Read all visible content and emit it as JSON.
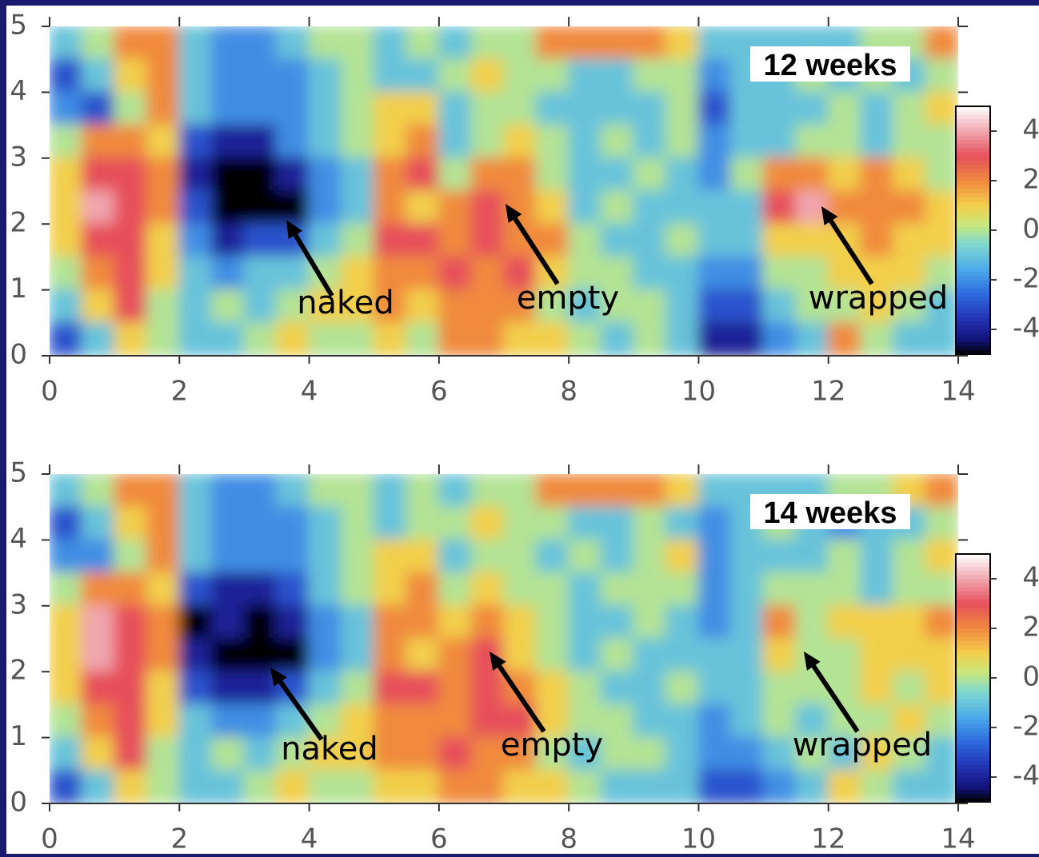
{
  "chart_data": [
    {
      "type": "heatmap",
      "title": "12 weeks",
      "xlim": [
        0,
        14
      ],
      "ylim": [
        0,
        5
      ],
      "xticks": [
        0,
        2,
        4,
        6,
        8,
        10,
        12,
        14
      ],
      "yticks": [
        0,
        1,
        2,
        3,
        4,
        5
      ],
      "zlim": [
        -5,
        5
      ],
      "colorbar_ticks": [
        -4,
        -2,
        0,
        2,
        4
      ],
      "annotations": [
        "naked",
        "empty",
        "wrapped"
      ],
      "z": [
        [
          -1,
          0,
          2,
          2,
          -1,
          -2,
          -2,
          -1,
          0,
          0,
          -1,
          0,
          -1,
          0,
          0,
          2,
          2,
          2,
          2,
          1,
          -1,
          -1,
          -1,
          -1,
          -1,
          0,
          0,
          2
        ],
        [
          -3,
          -1,
          1,
          2,
          -1,
          -2,
          -2,
          -2,
          -1,
          0,
          -1,
          -1,
          0,
          1,
          0,
          0,
          -1,
          -1,
          0,
          0,
          -2,
          -1,
          -1,
          0,
          -1,
          0,
          -1,
          0
        ],
        [
          -2,
          -3,
          0,
          2,
          -1,
          -2,
          -2,
          -2,
          -1,
          0,
          1,
          1,
          -1,
          0,
          0,
          -1,
          -1,
          -1,
          -1,
          0,
          -3,
          -1,
          -1,
          -1,
          0,
          -1,
          0,
          1
        ],
        [
          0,
          2,
          2,
          1,
          -3,
          -4,
          -4,
          -2,
          -1,
          0,
          1,
          2,
          -1,
          0,
          1,
          0,
          -1,
          0,
          -1,
          0,
          -2,
          -1,
          -1,
          0,
          0,
          -1,
          0,
          0
        ],
        [
          1,
          3,
          3,
          2,
          -4,
          -5,
          -5,
          -4,
          -2,
          -1,
          2,
          3,
          0,
          2,
          2,
          0,
          -1,
          -1,
          0,
          -1,
          -2,
          0,
          2,
          2,
          1,
          2,
          1,
          0
        ],
        [
          1,
          4,
          3,
          2,
          -3,
          -5,
          -5,
          -5,
          -2,
          -1,
          2,
          1,
          2,
          3,
          2,
          1,
          -1,
          0,
          -1,
          -1,
          -1,
          -1,
          3,
          4,
          2,
          2,
          2,
          1
        ],
        [
          1,
          3,
          3,
          1,
          -2,
          -4,
          -3,
          -3,
          -1,
          0,
          3,
          3,
          2,
          3,
          2,
          2,
          0,
          -1,
          -1,
          0,
          -1,
          -1,
          1,
          1,
          1,
          2,
          1,
          1
        ],
        [
          0,
          2,
          3,
          1,
          -1,
          -2,
          -1,
          -1,
          0,
          1,
          2,
          2,
          3,
          2,
          3,
          1,
          0,
          0,
          -1,
          -1,
          -2,
          -2,
          0,
          0,
          1,
          1,
          1,
          0
        ],
        [
          -1,
          1,
          3,
          0,
          -1,
          0,
          -1,
          0,
          1,
          1,
          2,
          1,
          2,
          2,
          2,
          0,
          -1,
          0,
          0,
          -1,
          -3,
          -3,
          -1,
          0,
          0,
          1,
          0,
          -1
        ],
        [
          -3,
          -1,
          1,
          0,
          -1,
          -1,
          0,
          1,
          0,
          0,
          1,
          0,
          2,
          2,
          1,
          1,
          0,
          -1,
          0,
          -1,
          -4,
          -4,
          -2,
          -1,
          2,
          0,
          -1,
          -1
        ]
      ]
    },
    {
      "type": "heatmap",
      "title": "14 weeks",
      "xlim": [
        0,
        14
      ],
      "ylim": [
        0,
        5
      ],
      "xticks": [
        0,
        2,
        4,
        6,
        8,
        10,
        12,
        14
      ],
      "yticks": [
        0,
        1,
        2,
        3,
        4,
        5
      ],
      "zlim": [
        -5,
        5
      ],
      "colorbar_ticks": [
        -4,
        -2,
        0,
        2,
        4
      ],
      "annotations": [
        "naked",
        "empty",
        "wrapped"
      ],
      "z": [
        [
          -1,
          0,
          2,
          2,
          -1,
          -2,
          -2,
          -1,
          0,
          0,
          -1,
          0,
          -1,
          0,
          0,
          2,
          2,
          2,
          2,
          1,
          -1,
          -1,
          -1,
          -1,
          0,
          0,
          1,
          2
        ],
        [
          -3,
          -1,
          1,
          2,
          -1,
          -2,
          -2,
          -2,
          -1,
          0,
          -1,
          0,
          0,
          1,
          0,
          0,
          -1,
          -1,
          0,
          -1,
          -2,
          -1,
          0,
          -1,
          -2,
          -1,
          -1,
          0
        ],
        [
          -2,
          -2,
          0,
          2,
          -1,
          -2,
          -2,
          -2,
          -1,
          0,
          1,
          1,
          -1,
          0,
          0,
          -1,
          0,
          -1,
          0,
          1,
          -2,
          -1,
          -1,
          -1,
          0,
          -1,
          0,
          1
        ],
        [
          0,
          2,
          2,
          1,
          -3,
          -4,
          -4,
          -3,
          -1,
          0,
          1,
          2,
          0,
          1,
          0,
          0,
          -1,
          0,
          0,
          0,
          -2,
          -1,
          0,
          0,
          0,
          -1,
          0,
          0
        ],
        [
          1,
          4,
          3,
          2,
          -5,
          -4,
          -5,
          -4,
          -2,
          -1,
          2,
          2,
          1,
          2,
          1,
          0,
          -1,
          -1,
          0,
          -1,
          -2,
          -1,
          2,
          0,
          1,
          1,
          1,
          2
        ],
        [
          1,
          4,
          3,
          2,
          -4,
          -5,
          -5,
          -5,
          -2,
          -1,
          2,
          1,
          2,
          3,
          1,
          0,
          -1,
          0,
          -1,
          -1,
          -1,
          -1,
          1,
          0,
          0,
          1,
          1,
          1
        ],
        [
          1,
          3,
          3,
          1,
          -3,
          -4,
          -4,
          -3,
          -1,
          0,
          3,
          3,
          2,
          3,
          2,
          1,
          0,
          -1,
          -1,
          0,
          -1,
          -1,
          0,
          0,
          0,
          1,
          0,
          1
        ],
        [
          0,
          2,
          3,
          1,
          -1,
          -2,
          -2,
          -1,
          0,
          1,
          2,
          2,
          2,
          3,
          3,
          1,
          0,
          0,
          -1,
          -1,
          -2,
          -1,
          0,
          -1,
          0,
          0,
          1,
          0
        ],
        [
          -1,
          1,
          3,
          0,
          -1,
          0,
          -1,
          0,
          1,
          1,
          2,
          2,
          3,
          2,
          2,
          0,
          -1,
          0,
          0,
          -1,
          -2,
          -2,
          -1,
          0,
          -1,
          1,
          0,
          -1
        ],
        [
          -3,
          -1,
          1,
          0,
          -1,
          -1,
          0,
          1,
          0,
          0,
          1,
          1,
          2,
          2,
          1,
          1,
          0,
          -1,
          -1,
          -1,
          -3,
          -3,
          -2,
          -1,
          1,
          0,
          -1,
          -1
        ]
      ]
    }
  ]
}
